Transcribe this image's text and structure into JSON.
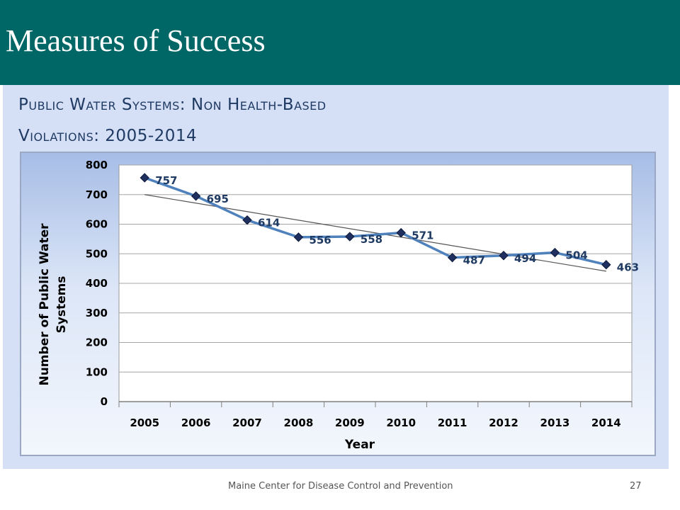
{
  "slide": {
    "title": "Measures of Success",
    "footer": "Maine Center for Disease Control and Prevention",
    "page_number": "27"
  },
  "colors": {
    "header_bg": "#006766",
    "panel_bg": "#d5dff5",
    "series_line": "#4f81bd",
    "marker": "#1f2f5f",
    "trendline": "#555555",
    "label_text": "#1f3a63"
  },
  "chart_data": {
    "type": "line",
    "title_lines": [
      "Public Water Systems: Non Health-Based",
      "Violations: 2005-2014"
    ],
    "xlabel": "Year",
    "ylabel_lines": [
      "Number of Public Water",
      "Systems"
    ],
    "categories": [
      "2005",
      "2006",
      "2007",
      "2008",
      "2009",
      "2010",
      "2011",
      "2012",
      "2013",
      "2014"
    ],
    "series": [
      {
        "values": [
          757,
          695,
          614,
          556,
          558,
          571,
          487,
          494,
          504,
          463
        ],
        "marker": "diamond",
        "data_labels": true
      }
    ],
    "trendline": {
      "type": "linear",
      "start": 700,
      "end": 441
    },
    "ylim": [
      0,
      800
    ],
    "yticks": [
      0,
      100,
      200,
      300,
      400,
      500,
      600,
      700,
      800
    ],
    "grid": true,
    "legend": "none"
  }
}
